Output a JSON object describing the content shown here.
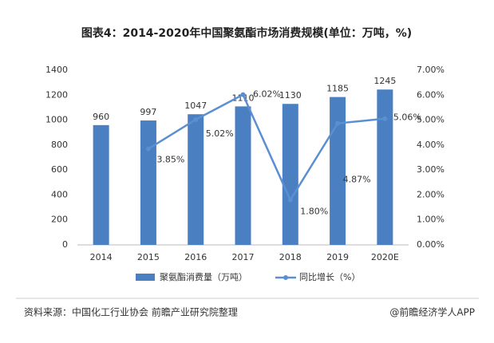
{
  "chart_data": {
    "type": "bar_line",
    "title": "图表4：2014-2020年中国聚氨酯市场消费规模(单位：万吨，%)",
    "categories": [
      "2014",
      "2015",
      "2016",
      "2017",
      "2018",
      "2019",
      "2020E"
    ],
    "series": [
      {
        "name": "聚氨酯消费量（万吨）",
        "type": "bar",
        "color": "#4a7fc1",
        "values": [
          960,
          997,
          1047,
          1110,
          1130,
          1185,
          1245
        ]
      },
      {
        "name": "同比增长（%）",
        "type": "line",
        "axis": "y2",
        "color": "#5b8fd3",
        "values": [
          null,
          3.85,
          5.02,
          6.02,
          1.8,
          4.87,
          5.06
        ],
        "value_labels": [
          null,
          "3.85%",
          "5.02%",
          "6.02%",
          "1.80%",
          "4.87%",
          "5.06%"
        ]
      }
    ],
    "ylim": [
      0,
      1400
    ],
    "yticks": [
      0,
      200,
      400,
      600,
      800,
      1000,
      1200,
      1400
    ],
    "y2lim": [
      0,
      7
    ],
    "y2ticks": [
      {
        "value": 0,
        "label": "0.00%"
      },
      {
        "value": 1,
        "label": "1.00%"
      },
      {
        "value": 2,
        "label": "2.00%"
      },
      {
        "value": 3,
        "label": "3.00%"
      },
      {
        "value": 4,
        "label": "4.00%"
      },
      {
        "value": 5,
        "label": "5.00%"
      },
      {
        "value": 6,
        "label": "6.00%"
      },
      {
        "value": 7,
        "label": "7.00%"
      }
    ],
    "grid": false,
    "legend": "bottom",
    "source": "资料来源：中国化工行业协会 前瞻产业研究院整理",
    "brand": "@前瞻经济学人APP"
  }
}
